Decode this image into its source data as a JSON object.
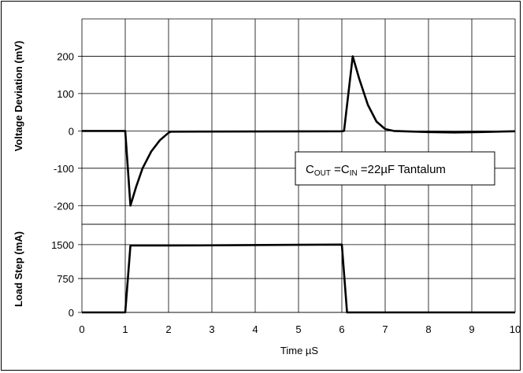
{
  "chart_data": {
    "type": "line",
    "xlabel": "Time µS",
    "x_ticks": [
      "0",
      "1",
      "2",
      "3",
      "4",
      "5",
      "6",
      "7",
      "8",
      "9",
      "10"
    ],
    "xlim": [
      0,
      10
    ],
    "grid": true,
    "panels": [
      {
        "ylabel": "Voltage Deviation (mV)",
        "ylim": [
          -250,
          300
        ],
        "y_ticks": [
          "200",
          "100",
          "0",
          "-100",
          "-200"
        ],
        "y_tick_values": [
          200,
          100,
          0,
          -100,
          -200
        ],
        "annotation": {
          "parts": [
            "C",
            "OUT",
            " =C",
            "IN",
            " =22",
            "µ",
            "F Tantalum"
          ]
        },
        "series": [
          {
            "x": [
              0,
              1.0,
              1.12,
              1.25,
              1.4,
              1.6,
              1.8,
              2.0,
              2.05,
              6.0,
              6.05,
              6.25,
              6.4,
              6.6,
              6.8,
              7.0,
              7.2,
              8.0,
              8.6,
              9.2,
              10
            ],
            "values": [
              0,
              0,
              -200,
              -150,
              -100,
              -55,
              -25,
              -5,
              -2,
              -1,
              0,
              200,
              140,
              70,
              25,
              5,
              0,
              -3,
              -4,
              -3,
              -1
            ]
          }
        ]
      },
      {
        "ylabel": "Load Step (mA)",
        "ylim": [
          0,
          1950
        ],
        "y_ticks": [
          "1500",
          "750",
          "0"
        ],
        "y_tick_values": [
          1500,
          750,
          0
        ],
        "series": [
          {
            "x": [
              0,
              1.0,
              1.12,
              2.0,
              6.0,
              6.12,
              10
            ],
            "values": [
              0,
              0,
              1480,
              1480,
              1500,
              0,
              0
            ]
          }
        ]
      }
    ]
  }
}
